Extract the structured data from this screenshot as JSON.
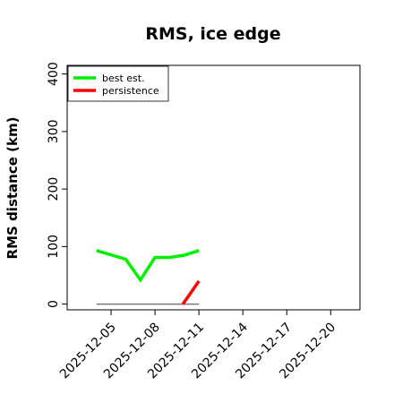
{
  "chart_data": {
    "type": "line",
    "title": "RMS, ice edge",
    "xlabel": "",
    "ylabel": "RMS distance (km)",
    "x_ticks": [
      "2025-12-05",
      "2025-12-08",
      "2025-12-11",
      "2025-12-14",
      "2025-12-17",
      "2025-12-20"
    ],
    "xlim": [
      "2025-12-02",
      "2025-12-22"
    ],
    "ylim": [
      -10,
      415
    ],
    "y_ticks": [
      0,
      100,
      200,
      300,
      400
    ],
    "grid": false,
    "legend_position": "top-left",
    "series": [
      {
        "name": "best est.",
        "color": "#00ee00",
        "x": [
          "2025-12-04",
          "2025-12-06",
          "2025-12-07",
          "2025-12-08",
          "2025-12-09",
          "2025-12-10",
          "2025-12-11"
        ],
        "y": [
          93,
          78,
          42,
          81,
          81,
          85,
          93
        ]
      },
      {
        "name": "persistence",
        "color": "#ff0000",
        "x": [
          "2025-12-09.9",
          "2025-12-11"
        ],
        "y": [
          0,
          40
        ]
      }
    ],
    "reference_line": {
      "color": "#777777",
      "x": [
        "2025-12-04",
        "2025-12-11"
      ],
      "y": [
        0,
        0
      ]
    }
  }
}
